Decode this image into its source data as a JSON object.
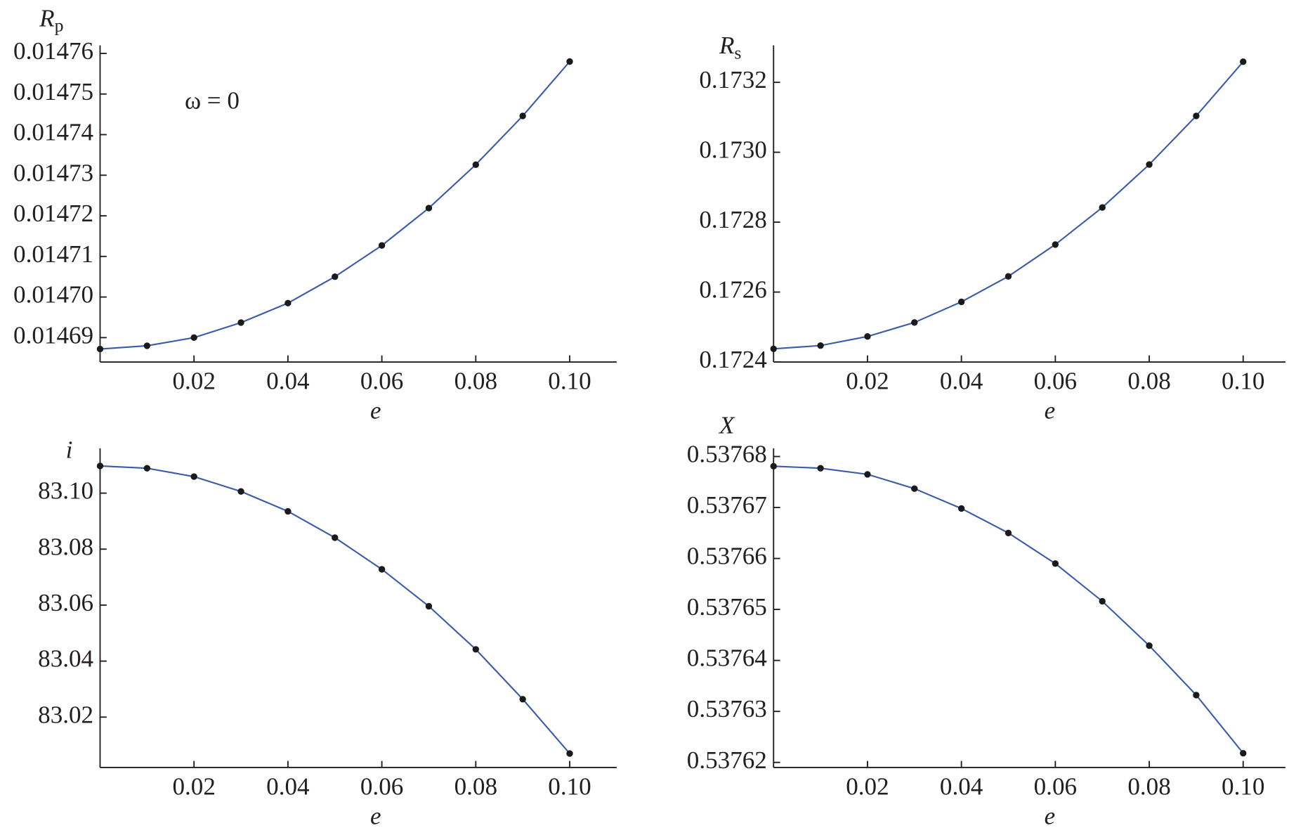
{
  "chart_data": [
    {
      "type": "line",
      "ylabel": "R",
      "ylabel_sub": "p",
      "xlabel": "e",
      "annotation": "ω = 0",
      "x": [
        0,
        0.01,
        0.02,
        0.03,
        0.04,
        0.05,
        0.06,
        0.07,
        0.08,
        0.09,
        0.1
      ],
      "values": [
        0.0146872,
        0.014688,
        0.01469,
        0.0146937,
        0.0146985,
        0.014705,
        0.0147127,
        0.0147219,
        0.0147326,
        0.0147446,
        0.014758
      ],
      "color": "#3a5ba8",
      "marker_color": "#1a1a1a",
      "xlim": [
        0,
        0.11
      ],
      "xticks": [
        0.02,
        0.04,
        0.06,
        0.08,
        {
          "value": 0.1,
          "label": "0.10"
        }
      ],
      "ylim": [
        0.014684,
        0.014762
      ],
      "yticks": [
        0.01469,
        {
          "value": 0.0147,
          "label": "0.01470"
        },
        0.01471,
        0.01472,
        0.01473,
        0.01474,
        0.01475,
        0.01476
      ]
    },
    {
      "type": "line",
      "ylabel": "R",
      "ylabel_sub": "s",
      "xlabel": "e",
      "x": [
        0,
        0.01,
        0.02,
        0.03,
        0.04,
        0.05,
        0.06,
        0.07,
        0.08,
        0.09,
        0.1
      ],
      "values": [
        0.1724376,
        0.172447,
        0.172473,
        0.172513,
        0.172572,
        0.172645,
        0.172736,
        0.172842,
        0.172965,
        0.173104,
        0.173259
      ],
      "color": "#3a5ba8",
      "marker_color": "#1a1a1a",
      "xlim": [
        0,
        0.109
      ],
      "xticks": [
        0.02,
        0.04,
        0.06,
        0.08,
        {
          "value": 0.1,
          "label": "0.10"
        }
      ],
      "ylim": [
        0.1724,
        0.173306
      ],
      "yticks": [
        0.1724,
        0.1726,
        0.1728,
        {
          "value": 0.173,
          "label": "0.1730"
        },
        0.1732
      ]
    },
    {
      "type": "line",
      "ylabel": "i",
      "xlabel": "e",
      "x": [
        0,
        0.01,
        0.02,
        0.03,
        0.04,
        0.05,
        0.06,
        0.07,
        0.08,
        0.09,
        0.1
      ],
      "values": [
        83.1097,
        83.1089,
        83.1059,
        83.1006,
        83.0935,
        83.0841,
        83.0728,
        83.0596,
        83.0442,
        83.0264,
        83.007
      ],
      "color": "#3a5ba8",
      "marker_color": "#1a1a1a",
      "xlim": [
        0,
        0.11
      ],
      "xticks": [
        0.02,
        0.04,
        0.06,
        0.08,
        {
          "value": 0.1,
          "label": "0.10"
        }
      ],
      "ylim": [
        83.002,
        83.116
      ],
      "yticks": [
        83.02,
        83.04,
        83.06,
        83.08,
        {
          "value": 83.1,
          "label": "83.10"
        }
      ]
    },
    {
      "type": "line",
      "ylabel": "X",
      "xlabel": "e",
      "x": [
        0,
        0.01,
        0.02,
        0.03,
        0.04,
        0.05,
        0.06,
        0.07,
        0.08,
        0.09,
        0.1
      ],
      "values": [
        0.5376781,
        0.5376777,
        0.5376765,
        0.5376737,
        0.5376698,
        0.537665,
        0.537659,
        0.5376516,
        0.5376429,
        0.5376332,
        0.5376218
      ],
      "color": "#3a5ba8",
      "marker_color": "#1a1a1a",
      "xlim": [
        0,
        0.109
      ],
      "xticks": [
        0.02,
        0.04,
        0.06,
        0.08,
        {
          "value": 0.1,
          "label": "0.10"
        }
      ],
      "ylim": [
        0.537619,
        0.5376816
      ],
      "yticks": [
        0.53762,
        0.53763,
        0.53764,
        0.53765,
        0.53766,
        0.53767,
        0.53768
      ]
    }
  ]
}
